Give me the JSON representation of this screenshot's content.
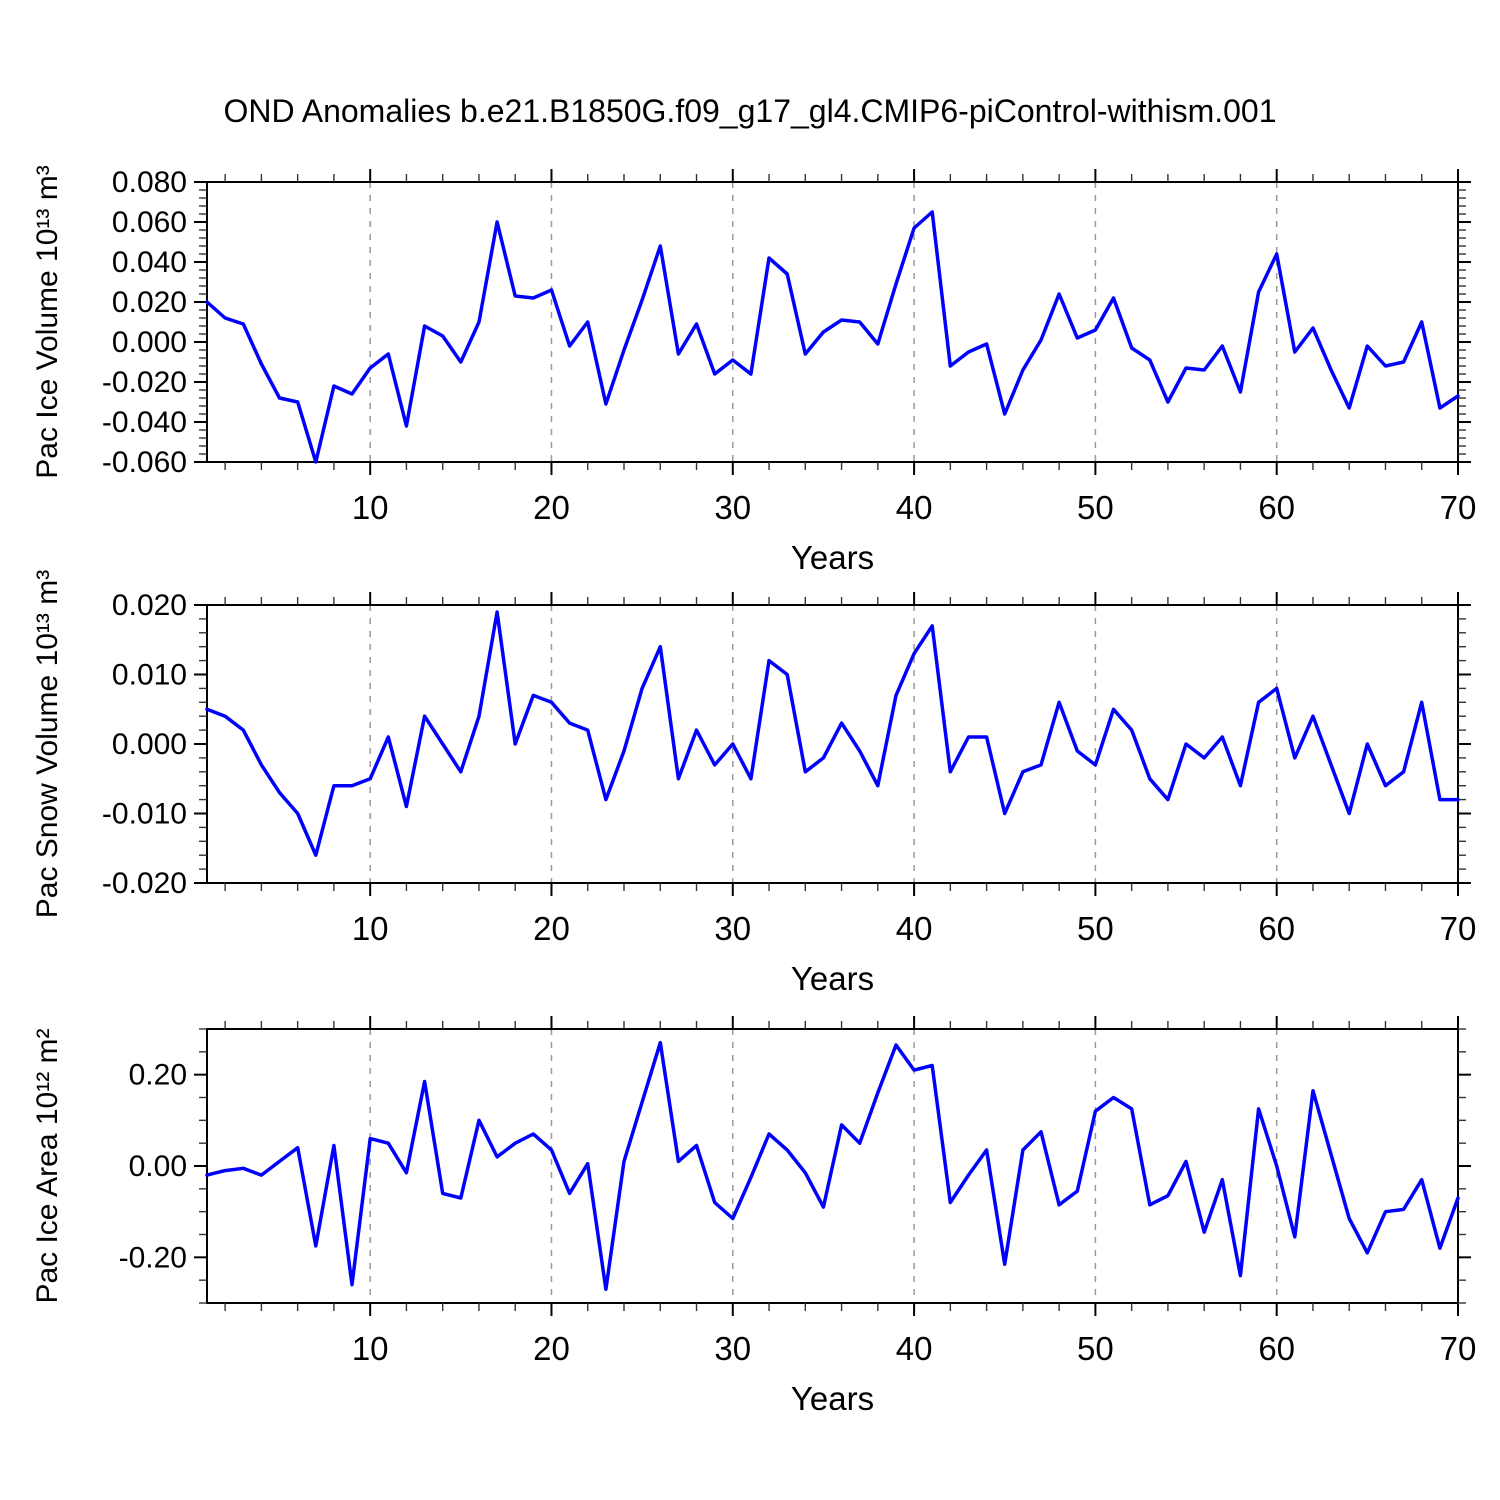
{
  "title": "OND Anomalies b.e21.B1850G.f09_g17_gl4.CMIP6-piControl-withism.001",
  "xlabel": "Years",
  "x_range": [
    1,
    70
  ],
  "x_ticks": [
    10,
    20,
    30,
    40,
    50,
    60,
    70
  ],
  "grid_decades": [
    10,
    20,
    30,
    40,
    50,
    60
  ],
  "line_color": "#0000ff",
  "grid_color": "#999999",
  "axis_color": "#000000",
  "chart_data": [
    {
      "type": "line",
      "id": "pac-ice-volume",
      "ylabel": "Pac Ice Volume 10¹³ m³",
      "ylim": [
        -0.06,
        0.08
      ],
      "ytick_step": 0.02,
      "yminor_step": 0.004,
      "ylabel_decimals": 3,
      "ytick_labels": [
        "0.080",
        "0.060",
        "0.040",
        "0.020",
        "0.000",
        "-0.020",
        "-0.040",
        "-0.060"
      ],
      "x": "years 1-70",
      "values": [
        0.02,
        0.012,
        0.009,
        -0.011,
        -0.028,
        -0.03,
        -0.06,
        -0.022,
        -0.026,
        -0.013,
        -0.006,
        -0.042,
        0.008,
        0.003,
        -0.01,
        0.01,
        0.06,
        0.023,
        0.022,
        0.026,
        -0.002,
        0.01,
        -0.031,
        -0.004,
        0.021,
        0.048,
        -0.006,
        0.009,
        -0.016,
        -0.009,
        -0.016,
        0.042,
        0.034,
        -0.006,
        0.005,
        0.011,
        0.01,
        -0.001,
        0.029,
        0.057,
        0.065,
        -0.012,
        -0.005,
        -0.001,
        -0.036,
        -0.014,
        0.001,
        0.024,
        0.002,
        0.006,
        0.022,
        -0.003,
        -0.009,
        -0.03,
        -0.013,
        -0.014,
        -0.002,
        -0.025,
        0.025,
        0.044,
        -0.005,
        0.007,
        -0.014,
        -0.033,
        -0.002,
        -0.012,
        -0.01,
        0.01,
        -0.033,
        -0.027
      ]
    },
    {
      "type": "line",
      "id": "pac-snow-volume",
      "ylabel": "Pac Snow Volume 10¹³ m³",
      "ylim": [
        -0.02,
        0.02
      ],
      "ytick_step": 0.01,
      "yminor_step": 0.002,
      "ylabel_decimals": 3,
      "ytick_labels": [
        "0.020",
        "0.010",
        "0.000",
        "-0.010",
        "-0.020"
      ],
      "x": "years 1-70",
      "values": [
        0.005,
        0.004,
        0.002,
        -0.003,
        -0.007,
        -0.01,
        -0.016,
        -0.006,
        -0.006,
        -0.005,
        0.001,
        -0.009,
        0.004,
        0.0,
        -0.004,
        0.004,
        0.019,
        0.0,
        0.007,
        0.006,
        0.003,
        0.002,
        -0.008,
        -0.001,
        0.008,
        0.014,
        -0.005,
        0.002,
        -0.003,
        0.0,
        -0.005,
        0.012,
        0.01,
        -0.004,
        -0.002,
        0.003,
        -0.001,
        -0.006,
        0.007,
        0.013,
        0.017,
        -0.004,
        0.001,
        0.001,
        -0.01,
        -0.004,
        -0.003,
        0.006,
        -0.001,
        -0.003,
        0.005,
        0.002,
        -0.005,
        -0.008,
        0.0,
        -0.002,
        0.001,
        -0.006,
        0.006,
        0.008,
        -0.002,
        0.004,
        -0.003,
        -0.01,
        0.0,
        -0.006,
        -0.004,
        0.006,
        -0.008,
        -0.008
      ]
    },
    {
      "type": "line",
      "id": "pac-ice-area",
      "ylabel": "Pac Ice Area 10¹² m²",
      "ylim": [
        -0.3,
        0.3
      ],
      "ytick_step": 0.2,
      "yminor_step": 0.05,
      "ylabel_decimals": 2,
      "ytick_labels": [
        "0.20",
        "0.00",
        "-0.20"
      ],
      "x": "years 1-70",
      "values": [
        -0.02,
        -0.01,
        -0.005,
        -0.02,
        0.01,
        0.04,
        -0.175,
        0.045,
        -0.26,
        0.06,
        0.05,
        -0.015,
        0.185,
        -0.06,
        -0.07,
        0.1,
        0.02,
        0.05,
        0.07,
        0.035,
        -0.06,
        0.005,
        -0.27,
        0.01,
        0.14,
        0.27,
        0.01,
        0.045,
        -0.08,
        -0.115,
        -0.025,
        0.07,
        0.035,
        -0.015,
        -0.09,
        0.09,
        0.05,
        0.16,
        0.265,
        0.21,
        0.22,
        -0.08,
        -0.02,
        0.035,
        -0.215,
        0.035,
        0.075,
        -0.085,
        -0.055,
        0.12,
        0.15,
        0.125,
        -0.085,
        -0.065,
        0.01,
        -0.145,
        -0.03,
        -0.24,
        0.125,
        0.0,
        -0.155,
        0.165,
        0.025,
        -0.115,
        -0.19,
        -0.1,
        -0.095,
        -0.03,
        -0.18,
        -0.07
      ]
    }
  ]
}
